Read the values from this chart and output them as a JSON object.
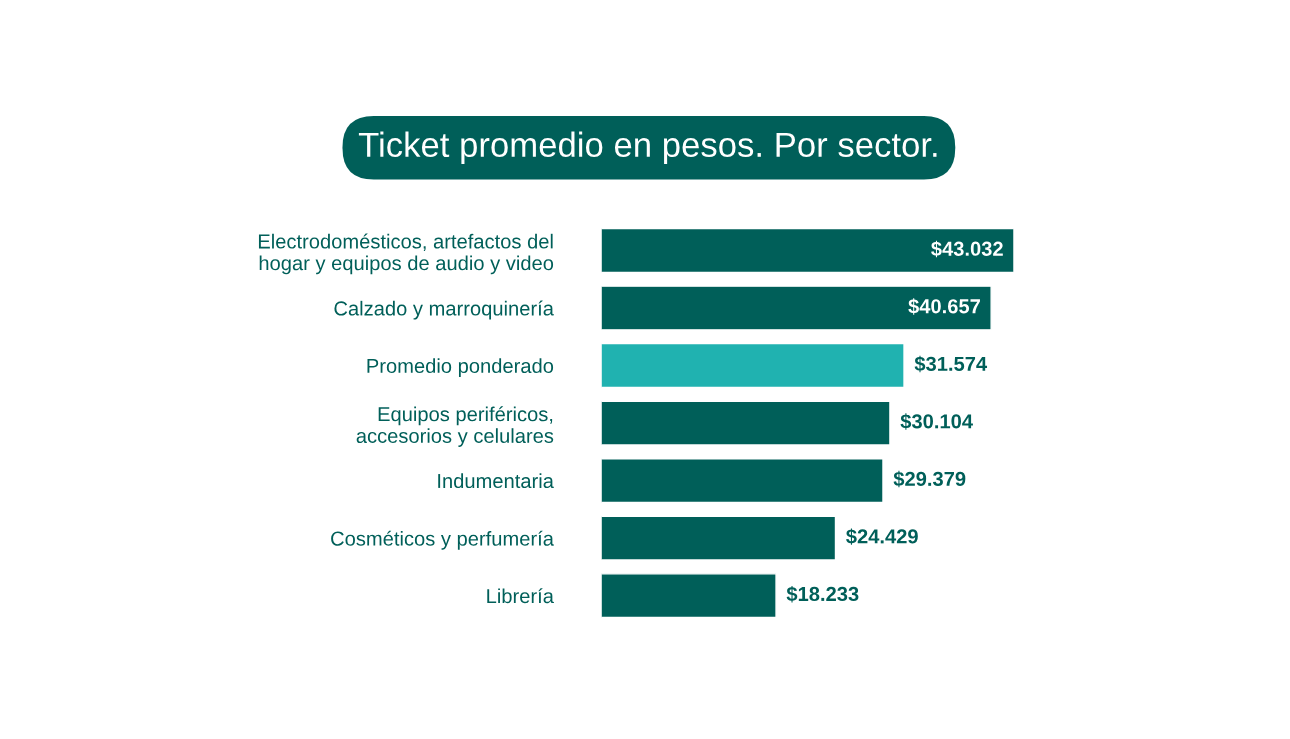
{
  "chart_data": {
    "type": "bar",
    "orientation": "horizontal",
    "title": "Ticket promedio en pesos. Por sector.",
    "categories": [
      "Electrodomésticos, artefactos del\nhogar y equipos de audio y video",
      "Calzado y marroquinería",
      "Promedio ponderado",
      "Equipos periféricos,\naccesorios y celulares",
      "Indumentaria",
      "Cosméticos y perfumería",
      "Librería"
    ],
    "values": [
      43032,
      40657,
      31574,
      30104,
      29379,
      24429,
      18233
    ],
    "value_labels": [
      "$43.032",
      "$40.657",
      "$31.574",
      "$30.104",
      "$29.379",
      "$24.429",
      "$18.233"
    ],
    "colors": [
      "#005f59",
      "#005f59",
      "#20b2b0",
      "#005f59",
      "#005f59",
      "#005f59",
      "#005f59"
    ],
    "grid": false,
    "legend": false,
    "tick_labels": "y"
  }
}
